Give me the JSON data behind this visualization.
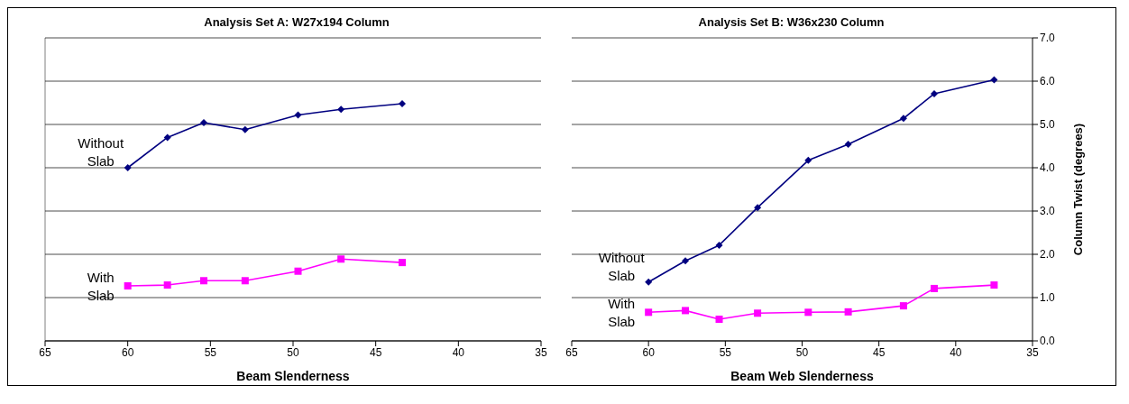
{
  "chart_data": [
    {
      "type": "line",
      "title": "Analysis Set A:  W27x194 Column",
      "xlabel": "Beam Slenderness",
      "xlim": [
        65,
        35
      ],
      "xticks": [
        65,
        60,
        55,
        50,
        45,
        40,
        35
      ],
      "ylim": [
        0,
        7
      ],
      "yticks": [
        0,
        1,
        2,
        3,
        4,
        5,
        6,
        7
      ],
      "tick_labels": "x",
      "grid": "y",
      "legend": false,
      "series": [
        {
          "name": "Without Slab",
          "color": "#000080",
          "marker": "diamond",
          "x": [
            60,
            57.6,
            55.4,
            52.9,
            49.7,
            47.1,
            43.4
          ],
          "values": [
            4.0,
            4.7,
            5.04,
            4.88,
            5.22,
            5.35,
            5.48
          ]
        },
        {
          "name": "With Slab",
          "color": "#ff00ff",
          "marker": "square",
          "x": [
            60,
            57.6,
            55.4,
            52.9,
            49.7,
            47.1,
            43.4
          ],
          "values": [
            1.27,
            1.29,
            1.39,
            1.39,
            1.61,
            1.89,
            1.81
          ]
        }
      ]
    },
    {
      "type": "line",
      "title": "Analysis Set B:  W36x230 Column",
      "xlabel": "Beam Web Slenderness",
      "ylabel": "Column Twist (degrees)",
      "xlim": [
        65,
        35
      ],
      "xticks": [
        65,
        60,
        55,
        50,
        45,
        40,
        35
      ],
      "ylim": [
        0,
        7
      ],
      "yticks": [
        {
          "value": 0,
          "label": "0.0"
        },
        {
          "value": 1,
          "label": "1.0"
        },
        {
          "value": 2,
          "label": "2.0"
        },
        {
          "value": 3,
          "label": "3.0"
        },
        {
          "value": 4,
          "label": "4.0"
        },
        {
          "value": 5,
          "label": "5.0"
        },
        {
          "value": 6,
          "label": "6.0"
        },
        {
          "value": 7,
          "label": "7.0"
        }
      ],
      "grid": "y",
      "legend": false,
      "series": [
        {
          "name": "Without Slab",
          "color": "#000080",
          "marker": "diamond",
          "x": [
            60,
            57.6,
            55.4,
            52.9,
            49.6,
            47.0,
            43.4,
            41.4,
            37.5
          ],
          "values": [
            1.36,
            1.85,
            2.21,
            3.08,
            4.17,
            4.54,
            5.14,
            5.71,
            6.03
          ]
        },
        {
          "name": "With Slab",
          "color": "#ff00ff",
          "marker": "square",
          "x": [
            60,
            57.6,
            55.4,
            52.9,
            49.6,
            47.0,
            43.4,
            41.4,
            37.5
          ],
          "values": [
            0.66,
            0.7,
            0.5,
            0.64,
            0.66,
            0.67,
            0.81,
            1.21,
            1.29
          ]
        }
      ]
    }
  ]
}
